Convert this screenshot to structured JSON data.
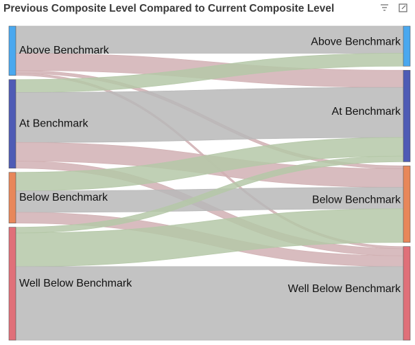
{
  "chart_data": {
    "type": "sankey",
    "title": "Previous Composite Level Compared to Current Composite Level",
    "nodes": [
      {
        "name": "Above Benchmark",
        "color": "#4aa8ef"
      },
      {
        "name": "At Benchmark",
        "color": "#4e5bb5"
      },
      {
        "name": "Below Benchmark",
        "color": "#e8875a"
      },
      {
        "name": "Well Below Benchmark",
        "color": "#e07079"
      },
      {
        "name": "Above Benchmark",
        "color": "#4aa8ef"
      },
      {
        "name": "At Benchmark",
        "color": "#4e5bb5"
      },
      {
        "name": "Below Benchmark",
        "color": "#e8875a"
      },
      {
        "name": "Well Below Benchmark",
        "color": "#e07079"
      }
    ],
    "links": [
      {
        "source": 0,
        "target": 4,
        "value": 38,
        "color": "#d9d9d9"
      },
      {
        "source": 0,
        "target": 5,
        "value": 24,
        "color": "#f6d0d3"
      },
      {
        "source": 0,
        "target": 6,
        "value": 4,
        "color": "#f6d0d3"
      },
      {
        "source": 0,
        "target": 7,
        "value": 3,
        "color": "#f6d0d3"
      },
      {
        "source": 1,
        "target": 4,
        "value": 18,
        "color": "#d5ebc6"
      },
      {
        "source": 1,
        "target": 5,
        "value": 70,
        "color": "#d9d9d9"
      },
      {
        "source": 1,
        "target": 6,
        "value": 26,
        "color": "#f6d0d3"
      },
      {
        "source": 1,
        "target": 7,
        "value": 10,
        "color": "#f6d0d3"
      },
      {
        "source": 2,
        "target": 5,
        "value": 26,
        "color": "#d5ebc6"
      },
      {
        "source": 2,
        "target": 6,
        "value": 30,
        "color": "#d9d9d9"
      },
      {
        "source": 2,
        "target": 7,
        "value": 15,
        "color": "#f6d0d3"
      },
      {
        "source": 3,
        "target": 5,
        "value": 8,
        "color": "#d5ebc6"
      },
      {
        "source": 3,
        "target": 6,
        "value": 47,
        "color": "#d5ebc6"
      },
      {
        "source": 3,
        "target": 7,
        "value": 103,
        "color": "#d9d9d9"
      }
    ]
  }
}
